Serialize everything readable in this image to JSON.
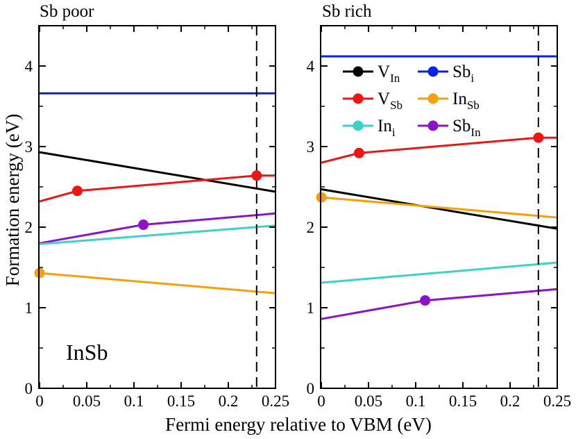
{
  "figure": {
    "shared_ylabel": "Formation energy (eV)",
    "shared_xlabel": "Fermi energy relative to VBM (eV)",
    "material_label": "InSb"
  },
  "chart_data": [
    {
      "type": "line",
      "title": "Sb poor",
      "xlim": [
        0,
        0.25
      ],
      "ylim": [
        0,
        4.5
      ],
      "xticks": [
        0,
        0.05,
        0.1,
        0.15,
        0.2,
        0.25
      ],
      "xtick_labels": [
        "0",
        "0.05",
        "0.1",
        "0.15",
        "0.2",
        "0.25"
      ],
      "yticks": [
        0,
        1,
        2,
        3,
        4
      ],
      "ytick_labels": [
        "0",
        "1",
        "2",
        "3",
        "4"
      ],
      "vline_x": 0.23,
      "series": [
        {
          "name": "Sb_i",
          "color": "#0a22e6",
          "points": [
            [
              0,
              3.66
            ],
            [
              0.25,
              3.66
            ]
          ],
          "markers": []
        },
        {
          "name": "V_In",
          "color": "#000000",
          "points": [
            [
              0,
              2.93
            ],
            [
              0.25,
              2.44
            ]
          ],
          "markers": []
        },
        {
          "name": "V_Sb",
          "color": "#f01414",
          "points": [
            [
              0,
              2.32
            ],
            [
              0.04,
              2.45
            ],
            [
              0.23,
              2.64
            ],
            [
              0.25,
              2.64
            ]
          ],
          "markers": [
            [
              0.04,
              2.45
            ],
            [
              0.23,
              2.64
            ]
          ]
        },
        {
          "name": "Sb_In",
          "color": "#8c14c8",
          "points": [
            [
              0,
              1.8
            ],
            [
              0.11,
              2.03
            ],
            [
              0.25,
              2.17
            ]
          ],
          "markers": [
            [
              0.11,
              2.03
            ]
          ]
        },
        {
          "name": "In_i",
          "color": "#3cd2c8",
          "points": [
            [
              0,
              1.79
            ],
            [
              0.25,
              2.02
            ]
          ],
          "markers": []
        },
        {
          "name": "In_Sb",
          "color": "#f5a00a",
          "points": [
            [
              0,
              1.43
            ],
            [
              0.25,
              1.18
            ]
          ],
          "markers": [
            [
              0,
              1.43
            ]
          ]
        }
      ]
    },
    {
      "type": "line",
      "title": "Sb rich",
      "xlim": [
        0,
        0.25
      ],
      "ylim": [
        0,
        4.5
      ],
      "xticks": [
        0,
        0.05,
        0.1,
        0.15,
        0.2,
        0.25
      ],
      "xtick_labels": [
        "0",
        "0.05",
        "0.1",
        "0.15",
        "0.2",
        "0.25"
      ],
      "yticks": [
        0,
        1,
        2,
        3,
        4
      ],
      "ytick_labels": [
        "0",
        "1",
        "2",
        "3",
        "4"
      ],
      "vline_x": 0.23,
      "series": [
        {
          "name": "Sb_i",
          "color": "#0a22e6",
          "points": [
            [
              0,
              4.12
            ],
            [
              0.25,
              4.12
            ]
          ],
          "markers": []
        },
        {
          "name": "V_Sb",
          "color": "#f01414",
          "points": [
            [
              0,
              2.8
            ],
            [
              0.04,
              2.92
            ],
            [
              0.23,
              3.11
            ],
            [
              0.25,
              3.11
            ]
          ],
          "markers": [
            [
              0.04,
              2.92
            ],
            [
              0.23,
              3.11
            ]
          ]
        },
        {
          "name": "V_In",
          "color": "#000000",
          "points": [
            [
              0,
              2.47
            ],
            [
              0.25,
              1.98
            ]
          ],
          "markers": []
        },
        {
          "name": "In_Sb",
          "color": "#f5a00a",
          "points": [
            [
              0,
              2.37
            ],
            [
              0.25,
              2.12
            ]
          ],
          "markers": [
            [
              0,
              2.37
            ]
          ]
        },
        {
          "name": "In_i",
          "color": "#3cd2c8",
          "points": [
            [
              0,
              1.31
            ],
            [
              0.25,
              1.56
            ]
          ],
          "markers": []
        },
        {
          "name": "Sb_In",
          "color": "#8c14c8",
          "points": [
            [
              0,
              0.86
            ],
            [
              0.11,
              1.09
            ],
            [
              0.25,
              1.23
            ]
          ],
          "markers": [
            [
              0.11,
              1.09
            ]
          ]
        }
      ]
    }
  ],
  "legend": {
    "placement": "top-right of Sb rich panel",
    "entries": [
      {
        "main": "V",
        "sub": "In",
        "color": "#000000"
      },
      {
        "main": "Sb",
        "sub": "i",
        "color": "#0a22e6"
      },
      {
        "main": "V",
        "sub": "Sb",
        "color": "#f01414"
      },
      {
        "main": "In",
        "sub": "Sb",
        "color": "#f5a00a"
      },
      {
        "main": "In",
        "sub": "i",
        "color": "#3cd2c8"
      },
      {
        "main": "Sb",
        "sub": "In",
        "color": "#8c14c8"
      }
    ]
  }
}
